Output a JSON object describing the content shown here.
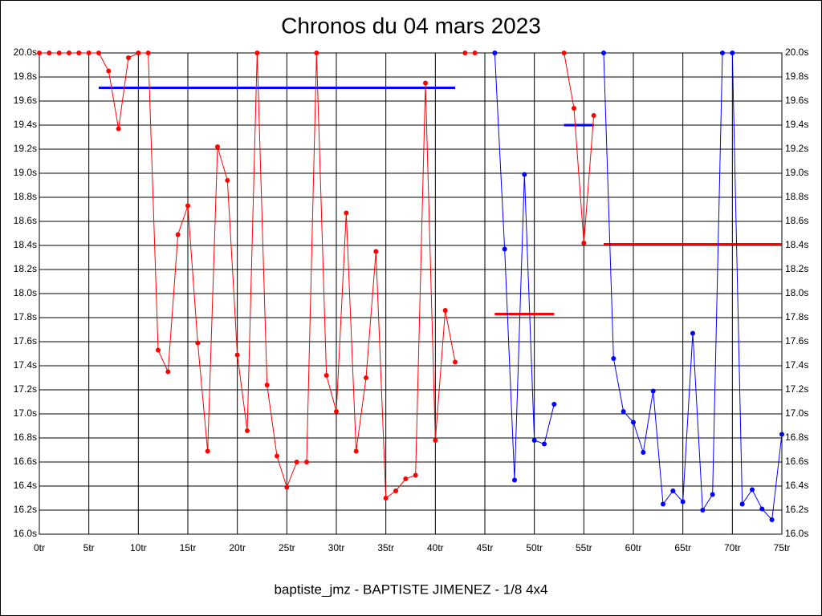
{
  "chart_data": {
    "type": "line",
    "title": "Chronos du 04 mars 2023",
    "footer": "baptiste_jmz - BAPTISTE JIMENEZ - 1/8 4x4",
    "xlim": [
      0,
      75
    ],
    "ylim": [
      16,
      20
    ],
    "grid": true,
    "xticks": [
      {
        "value": 0,
        "label": "0tr"
      },
      {
        "value": 5,
        "label": "5tr"
      },
      {
        "value": 10,
        "label": "10tr"
      },
      {
        "value": 15,
        "label": "15tr"
      },
      {
        "value": 20,
        "label": "20tr"
      },
      {
        "value": 25,
        "label": "25tr"
      },
      {
        "value": 30,
        "label": "30tr"
      },
      {
        "value": 35,
        "label": "35tr"
      },
      {
        "value": 40,
        "label": "40tr"
      },
      {
        "value": 45,
        "label": "45tr"
      },
      {
        "value": 50,
        "label": "50tr"
      },
      {
        "value": 55,
        "label": "55tr"
      },
      {
        "value": 60,
        "label": "60tr"
      },
      {
        "value": 65,
        "label": "65tr"
      },
      {
        "value": 70,
        "label": "70tr"
      },
      {
        "value": 75,
        "label": "75tr"
      }
    ],
    "yticks": [
      {
        "value": 16,
        "label": "16.0s"
      },
      {
        "value": 16.2,
        "label": "16.2s"
      },
      {
        "value": 16.4,
        "label": "16.4s"
      },
      {
        "value": 16.6,
        "label": "16.6s"
      },
      {
        "value": 16.8,
        "label": "16.8s"
      },
      {
        "value": 17,
        "label": "17.0s"
      },
      {
        "value": 17.2,
        "label": "17.2s"
      },
      {
        "value": 17.4,
        "label": "17.4s"
      },
      {
        "value": 17.6,
        "label": "17.6s"
      },
      {
        "value": 17.8,
        "label": "17.8s"
      },
      {
        "value": 18,
        "label": "18.0s"
      },
      {
        "value": 18.2,
        "label": "18.2s"
      },
      {
        "value": 18.4,
        "label": "18.4s"
      },
      {
        "value": 18.6,
        "label": "18.6s"
      },
      {
        "value": 18.8,
        "label": "18.8s"
      },
      {
        "value": 19,
        "label": "19.0s"
      },
      {
        "value": 19.2,
        "label": "19.2s"
      },
      {
        "value": 19.4,
        "label": "19.4s"
      },
      {
        "value": 19.6,
        "label": "19.6s"
      },
      {
        "value": 19.8,
        "label": "19.8s"
      },
      {
        "value": 20,
        "label": "20.0s"
      }
    ],
    "series": [
      {
        "color": "#ff0000",
        "x": [
          0,
          1,
          2,
          3,
          4,
          5,
          6,
          7,
          8,
          9,
          10,
          11,
          12,
          13,
          14,
          15,
          16,
          17,
          18,
          19,
          20,
          21,
          22,
          23,
          24,
          25,
          26,
          27,
          28,
          29,
          30,
          31,
          32,
          33,
          34,
          35,
          36,
          37,
          38,
          39,
          40,
          41,
          42
        ],
        "values": [
          20,
          20,
          20,
          20,
          20,
          20,
          20,
          19.85,
          19.37,
          19.96,
          20,
          20,
          17.53,
          17.35,
          18.49,
          18.73,
          17.59,
          16.69,
          19.22,
          18.94,
          17.49,
          16.86,
          20,
          17.24,
          16.65,
          16.39,
          16.6,
          16.6,
          20,
          17.32,
          17.02,
          18.67,
          16.69,
          17.3,
          18.35,
          16.3,
          16.36,
          16.46,
          16.49,
          19.75,
          16.78,
          17.86,
          17.43
        ]
      },
      {
        "color": "#ff0000",
        "x": [
          43,
          44
        ],
        "values": [
          20,
          20
        ]
      },
      {
        "color": "#0000ff",
        "x": [
          46,
          47,
          48,
          49,
          50,
          51,
          52
        ],
        "values": [
          20,
          18.37,
          16.45,
          18.99,
          16.78,
          16.75,
          17.08
        ]
      },
      {
        "color": "#ff0000",
        "x": [
          53,
          54,
          55,
          56
        ],
        "values": [
          20,
          19.54,
          18.42,
          19.48
        ]
      },
      {
        "color": "#0000ff",
        "x": [
          57,
          58,
          59,
          60,
          61,
          62,
          63,
          64,
          65,
          66,
          67,
          68,
          69,
          70,
          71,
          72,
          73,
          74,
          75
        ],
        "values": [
          20,
          17.46,
          17.02,
          16.93,
          16.68,
          17.19,
          16.25,
          16.36,
          16.27,
          17.67,
          16.2,
          16.33,
          20,
          20,
          16.25,
          16.37,
          16.21,
          16.12,
          16.83
        ]
      }
    ],
    "averages": [
      {
        "color": "#0000ff",
        "x": [
          6,
          42
        ],
        "value": 19.71
      },
      {
        "color": "#ff0000",
        "x": [
          46,
          52
        ],
        "value": 17.83
      },
      {
        "color": "#0000ff",
        "x": [
          53,
          56
        ],
        "value": 19.4
      },
      {
        "color": "#ff0000",
        "x": [
          57,
          75
        ],
        "value": 18.41
      }
    ]
  }
}
